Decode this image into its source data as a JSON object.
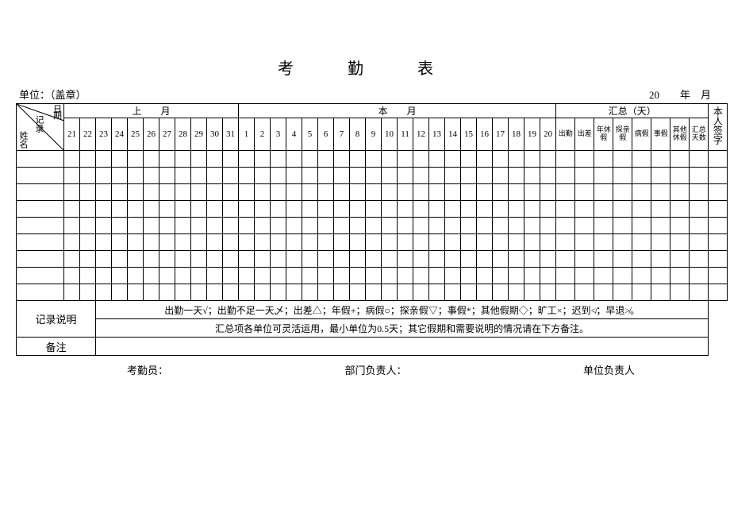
{
  "title": "考　勤　表",
  "header": {
    "unit_label": "单位：（盖章）",
    "date_label": "20　　年　月"
  },
  "corner": {
    "top": "日",
    "mid": "记录",
    "bot": "姓名",
    "extra": "期"
  },
  "month_groups": {
    "last": "上　　月",
    "this": "本　　月",
    "summary": "汇总（天）",
    "sign": "本人签字"
  },
  "days_last": [
    "21",
    "22",
    "23",
    "24",
    "25",
    "26",
    "27",
    "28",
    "29",
    "30",
    "31"
  ],
  "days_this": [
    "1",
    "2",
    "3",
    "4",
    "5",
    "6",
    "7",
    "8",
    "9",
    "10",
    "11",
    "12",
    "13",
    "14",
    "15",
    "16",
    "17",
    "18",
    "19",
    "20"
  ],
  "summary_cols": [
    "出勤",
    "出差",
    "年休假",
    "探亲假",
    "病假",
    "事假",
    "其他休假",
    "汇总天数"
  ],
  "body_row_count": 9,
  "desc": {
    "label": "记录说明",
    "line1": "出勤一天√；出勤不足一天乄；出差△；年假+；病假○；探亲假▽；事假*；其他假期◇；旷工×；迟到≮；早退≯。",
    "line2": "汇总项各单位可灵活运用，最小单位为0.5天；其它假期和需要说明的情况请在下方备注。"
  },
  "remark_label": "备注",
  "footer": {
    "clerk": "考勤员：",
    "dept": "部门负责人：",
    "unit": "单位负责人"
  },
  "colors": {
    "border": "#000000",
    "bg": "#ffffff",
    "text": "#000000"
  }
}
